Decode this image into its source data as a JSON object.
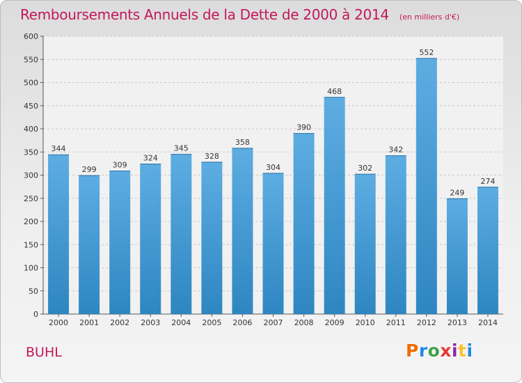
{
  "header": {
    "title": "Remboursements Annuels de la Dette de 2000 à 2014",
    "unit": "(en milliers d'€)"
  },
  "footer": {
    "commune": "BUHL",
    "logo": "Proxiti"
  },
  "colors": {
    "title": "#c2185b",
    "bar_top": "#5dade2",
    "bar_bottom": "#2e86c1",
    "logo_letters": [
      "#ef6c00",
      "#1e88e5",
      "#43a047",
      "#e53935",
      "#8e24aa",
      "#fbc02d",
      "#1e88e5"
    ]
  },
  "chart_data": {
    "type": "bar",
    "categories": [
      "2000",
      "2001",
      "2002",
      "2003",
      "2004",
      "2005",
      "2006",
      "2007",
      "2008",
      "2009",
      "2010",
      "2011",
      "2012",
      "2013",
      "2014"
    ],
    "values": [
      344,
      299,
      309,
      324,
      345,
      328,
      358,
      304,
      390,
      468,
      302,
      342,
      552,
      249,
      274
    ],
    "yticks": [
      0,
      50,
      100,
      150,
      200,
      250,
      300,
      350,
      400,
      450,
      500,
      550,
      600
    ],
    "ylim": [
      0,
      600
    ],
    "grid": true,
    "legend": "none"
  }
}
